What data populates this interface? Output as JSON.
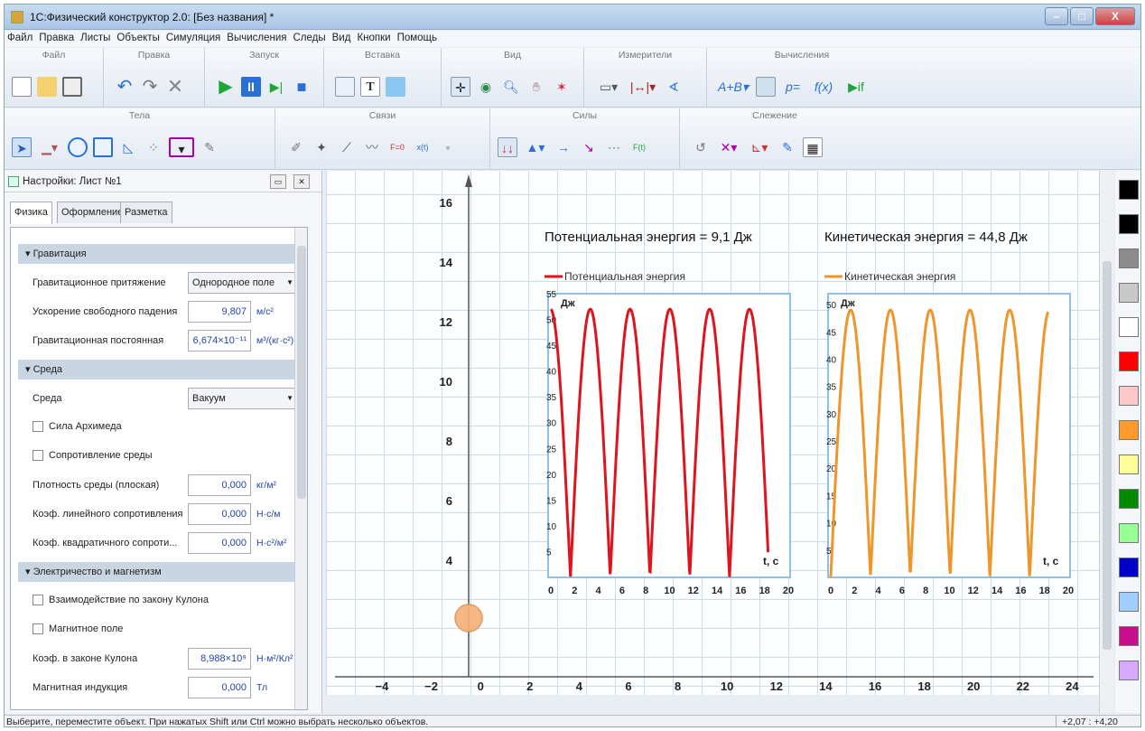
{
  "window": {
    "title": "1С:Физический конструктор 2.0: [Без названия] *",
    "buttons": [
      "–",
      "□",
      "X"
    ]
  },
  "menu": [
    "Файл",
    "Правка",
    "Листы",
    "Объекты",
    "Симуляция",
    "Вычисления",
    "Следы",
    "Вид",
    "Кнопки",
    "Помощь"
  ],
  "toolbar1": {
    "groups": [
      "Файл",
      "Правка",
      "Запуск",
      "Вставка",
      "Вид",
      "Измерители",
      "Вычисления"
    ]
  },
  "toolbar2": {
    "groups": [
      "Тела",
      "Связи",
      "Силы",
      "Слежение"
    ]
  },
  "panel": {
    "title": "Настройки: Лист №1",
    "tabs": [
      "Физика",
      "Оформление",
      "Разметка"
    ],
    "sections": {
      "gravity": "Гравитация",
      "medium": "Среда",
      "em": "Электричество и магнетизм"
    },
    "rows": {
      "grav_type": {
        "label": "Гравитационное притяжение",
        "value": "Однородное поле"
      },
      "g": {
        "label": "Ускорение свободного падения",
        "value": "9,807",
        "unit": "м/с²"
      },
      "G": {
        "label": "Гравитационная постоянная",
        "value": "6,674×10⁻¹¹",
        "unit": "м³/(кг·с²)"
      },
      "medium": {
        "label": "Среда",
        "value": "Вакуум"
      },
      "archimedes": {
        "label": "Сила Архимеда"
      },
      "drag": {
        "label": "Сопротивление среды"
      },
      "density": {
        "label": "Плотность среды (плоская)",
        "value": "0,000",
        "unit": "кг/м²"
      },
      "lin": {
        "label": "Коэф. линейного сопротивления",
        "value": "0,000",
        "unit": "Н·с/м"
      },
      "quad": {
        "label": "Коэф. квадратичного сопроти...",
        "value": "0,000",
        "unit": "Н·с²/м²"
      },
      "coulomb_cb": {
        "label": "Взаимодействие по закону Кулона"
      },
      "magnetic": {
        "label": "Магнитное поле"
      },
      "k": {
        "label": "Коэф. в законе Кулона",
        "value": "8,988×10⁹",
        "unit": "Н·м²/Кл²"
      },
      "B": {
        "label": "Магнитная индукция",
        "value": "0,000",
        "unit": "Тл"
      }
    }
  },
  "canvas": {
    "y_ticks": [
      "16",
      "14",
      "12",
      "10",
      "8",
      "6",
      "4"
    ],
    "x_ticks": [
      "−4",
      "−2",
      "0",
      "2",
      "4",
      "6",
      "8",
      "10",
      "12",
      "14",
      "16",
      "18",
      "20",
      "22",
      "24"
    ],
    "pe_title": "Потенциальная энергия = 9,1 Дж",
    "ke_title": "Кинетическая энергия = 44,8 Дж",
    "pe_legend": "Потенциальная энергия",
    "ke_legend": "Кинетическая энергия",
    "ylabel": "Дж",
    "xlabel": "t, с",
    "pe_colors": "#e0141e",
    "ke_colors": "#f0952a",
    "pe_yticks": [
      "55",
      "50",
      "45",
      "40",
      "35",
      "30",
      "25",
      "20",
      "15",
      "10",
      "5"
    ],
    "ke_yticks": [
      "50",
      "45",
      "40",
      "35",
      "30",
      "25",
      "20",
      "15",
      "10",
      "5"
    ],
    "chart_xticks": [
      "0",
      "2",
      "4",
      "6",
      "8",
      "10",
      "12",
      "14",
      "16",
      "18",
      "20"
    ]
  },
  "palette": [
    "#000000",
    "#000000",
    "#8c8c8c",
    "#c8c8c8",
    "#ffffff",
    "#ff0000",
    "#ffc8c8",
    "#ff9a2e",
    "#ffff9a",
    "#008a00",
    "#96ff96",
    "#0000c8",
    "#a0ceff",
    "#c8108c",
    "#d8a8ff"
  ],
  "status": {
    "text": "Выберите, переместите объект. При нажатых Shift или Ctrl можно выбрать несколько объектов.",
    "coord": "+2,07 : +4,20"
  }
}
